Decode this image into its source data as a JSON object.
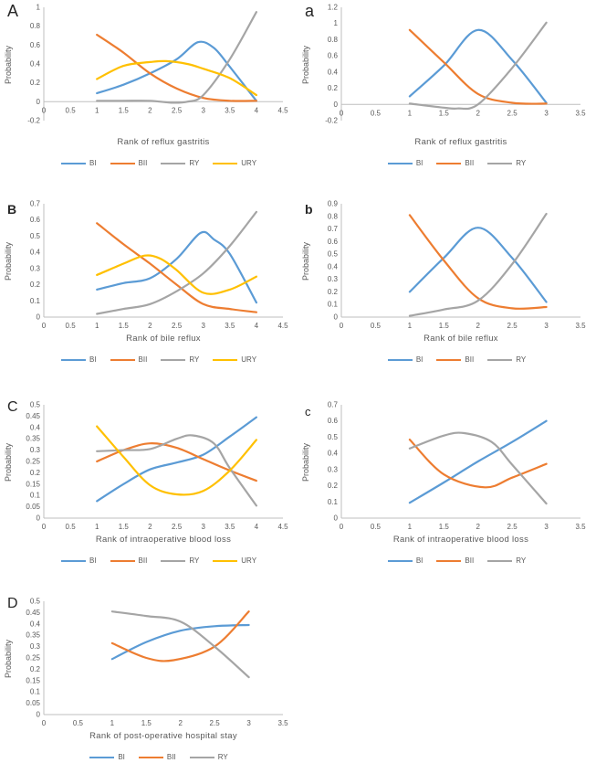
{
  "figure": {
    "background": "#ffffff"
  },
  "style": {
    "axis_color": "#bfbfbf",
    "text_color": "#595959",
    "panel_label_color": "#262626",
    "series_colors": {
      "BI": "#5b9bd5",
      "BII": "#ed7d31",
      "RY": "#a5a5a5",
      "URY": "#ffc000"
    }
  },
  "chart_data": [
    {
      "type": "line",
      "panel_label": "A",
      "title": "",
      "xlabel": "Rank of reflux gastritis",
      "ylabel": "Probability",
      "xlim": [
        0,
        4.5
      ],
      "xstep": 0.5,
      "ylim": [
        -0.2,
        1.0
      ],
      "ystep": 0.2,
      "grid": false,
      "legend_position": "bottom",
      "legend": [
        "BI",
        "BII",
        "RY",
        "URY"
      ],
      "series": [
        {
          "name": "BI",
          "color": "#5b9bd5",
          "points": [
            [
              1,
              0.09
            ],
            [
              1.5,
              0.18
            ],
            [
              2,
              0.3
            ],
            [
              2.5,
              0.45
            ],
            [
              2.9,
              0.63
            ],
            [
              3.2,
              0.57
            ],
            [
              3.5,
              0.37
            ],
            [
              4,
              0.01
            ]
          ]
        },
        {
          "name": "BII",
          "color": "#ed7d31",
          "points": [
            [
              1,
              0.71
            ],
            [
              1.5,
              0.52
            ],
            [
              2,
              0.3
            ],
            [
              2.5,
              0.14
            ],
            [
              3,
              0.04
            ],
            [
              3.5,
              0.01
            ],
            [
              4,
              0.01
            ]
          ]
        },
        {
          "name": "RY",
          "color": "#a5a5a5",
          "points": [
            [
              1,
              0.01
            ],
            [
              1.5,
              0.01
            ],
            [
              2,
              0.01
            ],
            [
              2.4,
              -0.01
            ],
            [
              2.7,
              0.0
            ],
            [
              3,
              0.07
            ],
            [
              3.5,
              0.45
            ],
            [
              4,
              0.95
            ]
          ]
        },
        {
          "name": "URY",
          "color": "#ffc000",
          "points": [
            [
              1,
              0.24
            ],
            [
              1.5,
              0.38
            ],
            [
              2,
              0.42
            ],
            [
              2.3,
              0.43
            ],
            [
              2.7,
              0.4
            ],
            [
              3,
              0.35
            ],
            [
              3.5,
              0.25
            ],
            [
              4,
              0.07
            ]
          ]
        }
      ]
    },
    {
      "type": "line",
      "panel_label": "a",
      "title": "",
      "xlabel": "Rank of reflux gastritis",
      "ylabel": "Probability",
      "xlim": [
        0,
        3.5
      ],
      "xstep": 0.5,
      "ylim": [
        -0.2,
        1.2
      ],
      "ystep": 0.2,
      "grid": false,
      "legend_position": "bottom",
      "legend": [
        "BI",
        "BII",
        "RY"
      ],
      "series": [
        {
          "name": "BI",
          "color": "#5b9bd5",
          "points": [
            [
              1,
              0.1
            ],
            [
              1.5,
              0.48
            ],
            [
              2,
              0.92
            ],
            [
              2.5,
              0.55
            ],
            [
              3,
              0.02
            ]
          ]
        },
        {
          "name": "BII",
          "color": "#ed7d31",
          "points": [
            [
              1,
              0.92
            ],
            [
              1.5,
              0.52
            ],
            [
              2,
              0.13
            ],
            [
              2.5,
              0.02
            ],
            [
              3,
              0.01
            ]
          ]
        },
        {
          "name": "RY",
          "color": "#a5a5a5",
          "points": [
            [
              1,
              0.01
            ],
            [
              1.5,
              -0.04
            ],
            [
              1.7,
              -0.05
            ],
            [
              2,
              0.0
            ],
            [
              2.5,
              0.45
            ],
            [
              3,
              1.01
            ]
          ]
        }
      ]
    },
    {
      "type": "line",
      "panel_label": "B",
      "title": "",
      "xlabel": "Rank of bile reflux",
      "ylabel": "Probability",
      "xlim": [
        0,
        4.5
      ],
      "xstep": 0.5,
      "ylim": [
        0,
        0.7
      ],
      "ystep": 0.1,
      "grid": false,
      "legend_position": "bottom",
      "legend": [
        "BI",
        "BII",
        "RY",
        "URY"
      ],
      "series": [
        {
          "name": "BI",
          "color": "#5b9bd5",
          "points": [
            [
              1,
              0.17
            ],
            [
              1.5,
              0.21
            ],
            [
              2,
              0.24
            ],
            [
              2.5,
              0.36
            ],
            [
              2.95,
              0.52
            ],
            [
              3.2,
              0.48
            ],
            [
              3.5,
              0.39
            ],
            [
              4,
              0.09
            ]
          ]
        },
        {
          "name": "BII",
          "color": "#ed7d31",
          "points": [
            [
              1,
              0.58
            ],
            [
              1.5,
              0.45
            ],
            [
              2,
              0.33
            ],
            [
              2.5,
              0.2
            ],
            [
              3,
              0.08
            ],
            [
              3.5,
              0.05
            ],
            [
              4,
              0.03
            ]
          ]
        },
        {
          "name": "RY",
          "color": "#a5a5a5",
          "points": [
            [
              1,
              0.02
            ],
            [
              1.5,
              0.05
            ],
            [
              2,
              0.08
            ],
            [
              2.5,
              0.16
            ],
            [
              3,
              0.27
            ],
            [
              3.5,
              0.44
            ],
            [
              4,
              0.65
            ]
          ]
        },
        {
          "name": "URY",
          "color": "#ffc000",
          "points": [
            [
              1,
              0.26
            ],
            [
              1.5,
              0.33
            ],
            [
              1.9,
              0.38
            ],
            [
              2.2,
              0.36
            ],
            [
              2.5,
              0.29
            ],
            [
              3,
              0.15
            ],
            [
              3.5,
              0.17
            ],
            [
              4,
              0.25
            ]
          ]
        }
      ]
    },
    {
      "type": "line",
      "panel_label": "b",
      "title": "",
      "xlabel": "Rank of bile reflux",
      "ylabel": "Probability",
      "xlim": [
        0,
        3.5
      ],
      "xstep": 0.5,
      "ylim": [
        0,
        0.9
      ],
      "ystep": 0.1,
      "grid": false,
      "legend_position": "bottom",
      "legend": [
        "BI",
        "BII",
        "RY"
      ],
      "series": [
        {
          "name": "BI",
          "color": "#5b9bd5",
          "points": [
            [
              1,
              0.2
            ],
            [
              1.5,
              0.47
            ],
            [
              2,
              0.71
            ],
            [
              2.5,
              0.47
            ],
            [
              3,
              0.12
            ]
          ]
        },
        {
          "name": "BII",
          "color": "#ed7d31",
          "points": [
            [
              1,
              0.81
            ],
            [
              1.5,
              0.45
            ],
            [
              2,
              0.15
            ],
            [
              2.5,
              0.07
            ],
            [
              3,
              0.08
            ]
          ]
        },
        {
          "name": "RY",
          "color": "#a5a5a5",
          "points": [
            [
              1,
              0.01
            ],
            [
              1.5,
              0.06
            ],
            [
              2,
              0.13
            ],
            [
              2.5,
              0.42
            ],
            [
              3,
              0.82
            ]
          ]
        }
      ]
    },
    {
      "type": "line",
      "panel_label": "C",
      "title": "",
      "xlabel": "Rank of intraoperative blood loss",
      "ylabel": "Probability",
      "xlim": [
        0,
        4.5
      ],
      "xstep": 0.5,
      "ylim": [
        0,
        0.5
      ],
      "ystep": 0.05,
      "grid": false,
      "legend_position": "bottom",
      "legend": [
        "BI",
        "BII",
        "RY",
        "URY"
      ],
      "series": [
        {
          "name": "BI",
          "color": "#5b9bd5",
          "points": [
            [
              1,
              0.075
            ],
            [
              1.5,
              0.15
            ],
            [
              2,
              0.215
            ],
            [
              2.5,
              0.245
            ],
            [
              3,
              0.28
            ],
            [
              3.5,
              0.36
            ],
            [
              4,
              0.445
            ]
          ]
        },
        {
          "name": "BII",
          "color": "#ed7d31",
          "points": [
            [
              1,
              0.25
            ],
            [
              1.5,
              0.3
            ],
            [
              2,
              0.33
            ],
            [
              2.5,
              0.31
            ],
            [
              3,
              0.26
            ],
            [
              3.5,
              0.21
            ],
            [
              4,
              0.165
            ]
          ]
        },
        {
          "name": "RY",
          "color": "#a5a5a5",
          "points": [
            [
              1,
              0.295
            ],
            [
              1.5,
              0.3
            ],
            [
              2,
              0.305
            ],
            [
              2.5,
              0.35
            ],
            [
              2.8,
              0.365
            ],
            [
              3.2,
              0.33
            ],
            [
              3.5,
              0.22
            ],
            [
              4,
              0.055
            ]
          ]
        },
        {
          "name": "URY",
          "color": "#ffc000",
          "points": [
            [
              1,
              0.405
            ],
            [
              1.5,
              0.27
            ],
            [
              2,
              0.145
            ],
            [
              2.5,
              0.105
            ],
            [
              3,
              0.12
            ],
            [
              3.5,
              0.21
            ],
            [
              4,
              0.345
            ]
          ]
        }
      ]
    },
    {
      "type": "line",
      "panel_label": "c",
      "title": "",
      "xlabel": "Rank of intraoperative blood loss",
      "ylabel": "Probability",
      "xlim": [
        0,
        3.5
      ],
      "xstep": 0.5,
      "ylim": [
        0,
        0.7
      ],
      "ystep": 0.1,
      "grid": false,
      "legend_position": "bottom",
      "legend": [
        "BI",
        "BII",
        "RY"
      ],
      "series": [
        {
          "name": "BI",
          "color": "#5b9bd5",
          "points": [
            [
              1,
              0.095
            ],
            [
              1.5,
              0.22
            ],
            [
              2,
              0.35
            ],
            [
              2.5,
              0.47
            ],
            [
              3,
              0.6
            ]
          ]
        },
        {
          "name": "BII",
          "color": "#ed7d31",
          "points": [
            [
              1,
              0.485
            ],
            [
              1.5,
              0.27
            ],
            [
              2.1,
              0.19
            ],
            [
              2.5,
              0.25
            ],
            [
              3,
              0.335
            ]
          ]
        },
        {
          "name": "RY",
          "color": "#a5a5a5",
          "points": [
            [
              1,
              0.43
            ],
            [
              1.5,
              0.51
            ],
            [
              1.8,
              0.525
            ],
            [
              2.2,
              0.47
            ],
            [
              2.5,
              0.33
            ],
            [
              3,
              0.09
            ]
          ]
        }
      ]
    },
    {
      "type": "line",
      "panel_label": "D",
      "title": "",
      "xlabel": "Rank of post-operative hospital stay",
      "ylabel": "Probability",
      "xlim": [
        0,
        3.5
      ],
      "xstep": 0.5,
      "ylim": [
        0,
        0.5
      ],
      "ystep": 0.05,
      "grid": false,
      "legend_position": "bottom",
      "legend": [
        "BI",
        "BII",
        "RY"
      ],
      "series": [
        {
          "name": "BI",
          "color": "#5b9bd5",
          "points": [
            [
              1,
              0.245
            ],
            [
              1.5,
              0.32
            ],
            [
              2,
              0.37
            ],
            [
              2.5,
              0.39
            ],
            [
              3,
              0.395
            ]
          ]
        },
        {
          "name": "BII",
          "color": "#ed7d31",
          "points": [
            [
              1,
              0.315
            ],
            [
              1.5,
              0.25
            ],
            [
              1.9,
              0.24
            ],
            [
              2.5,
              0.3
            ],
            [
              3,
              0.455
            ]
          ]
        },
        {
          "name": "RY",
          "color": "#a5a5a5",
          "points": [
            [
              1,
              0.455
            ],
            [
              1.5,
              0.435
            ],
            [
              2,
              0.41
            ],
            [
              2.5,
              0.3
            ],
            [
              3,
              0.165
            ]
          ]
        }
      ]
    }
  ]
}
